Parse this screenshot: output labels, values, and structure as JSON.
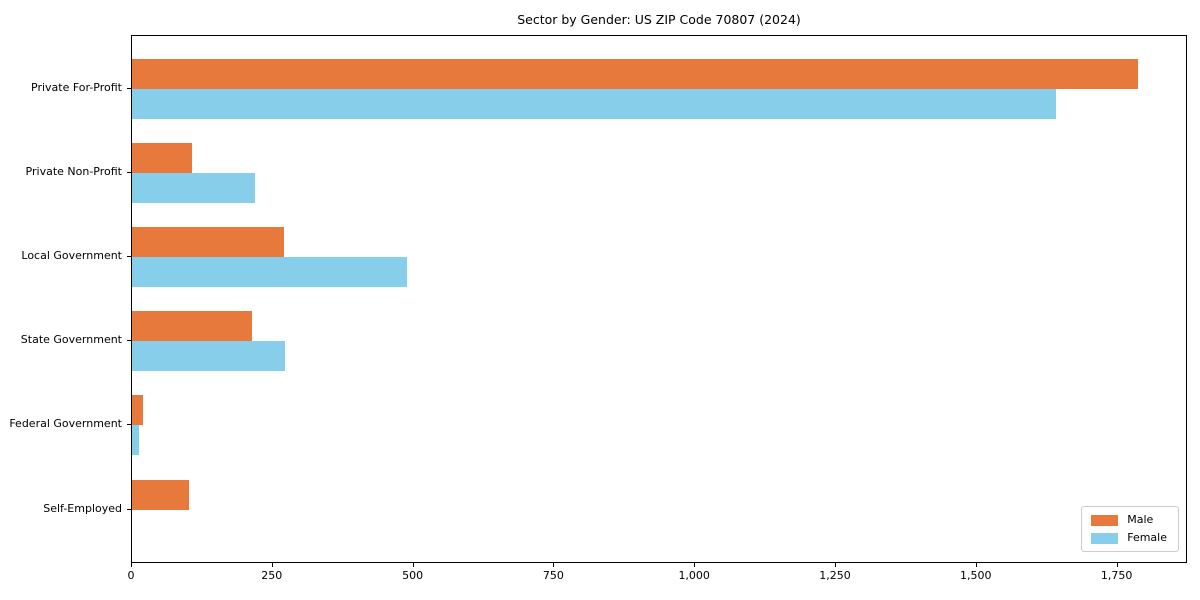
{
  "chart_data": {
    "type": "bar",
    "orientation": "horizontal",
    "title": "Sector by Gender: US ZIP Code 70807 (2024)",
    "categories": [
      "Private For-Profit",
      "Private Non-Profit",
      "Local Government",
      "State Government",
      "Federal Government",
      "Self-Employed"
    ],
    "series": [
      {
        "name": "Male",
        "color": "#E8793D",
        "values": [
          1786,
          107,
          270,
          213,
          19,
          101
        ]
      },
      {
        "name": "Female",
        "color": "#87CEEB",
        "values": [
          1640,
          218,
          489,
          272,
          12,
          0
        ]
      }
    ],
    "xlabel": "",
    "ylabel": "",
    "xlim": [
      0,
      1875
    ],
    "xticks": [
      0,
      250,
      500,
      750,
      1000,
      1250,
      1500,
      1750
    ],
    "xtick_labels": [
      "0",
      "250",
      "500",
      "750",
      "1,000",
      "1,250",
      "1,500",
      "1,750"
    ],
    "legend_position": "lower right",
    "grid": false,
    "frame": true
  }
}
